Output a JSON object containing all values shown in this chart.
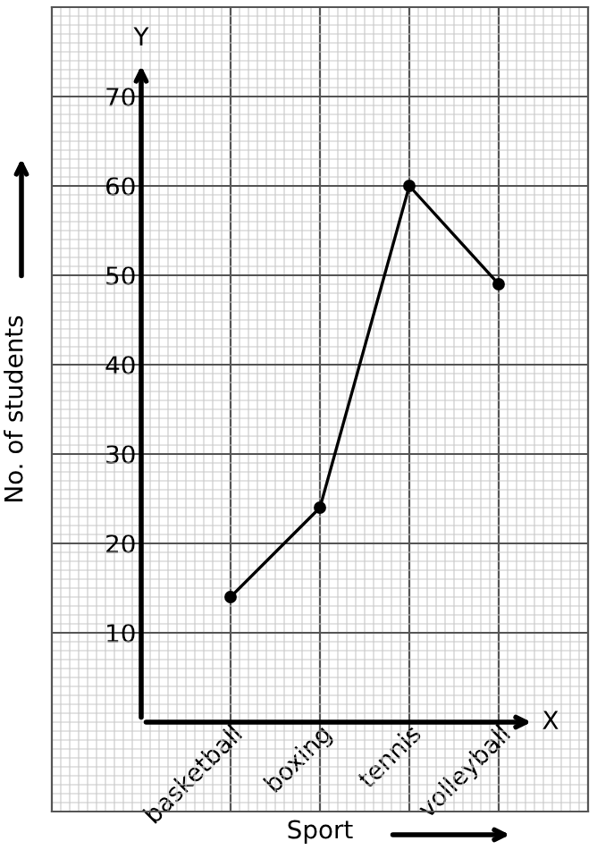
{
  "chart_data": {
    "type": "line",
    "xlabel": "Sport",
    "ylabel": "No. of students",
    "annotations": [
      "X",
      "Y"
    ],
    "categories": [
      "basketball",
      "boxing",
      "tennis",
      "volleyball"
    ],
    "series": [
      {
        "color": "#000000",
        "values": [
          14,
          24,
          60,
          49
        ]
      }
    ],
    "ylim": [
      -10,
      80
    ],
    "yticks": [
      10,
      20,
      30,
      40,
      50,
      60,
      70
    ],
    "grid": true,
    "marker": "circle",
    "line_style": "solid",
    "legend": false
  }
}
